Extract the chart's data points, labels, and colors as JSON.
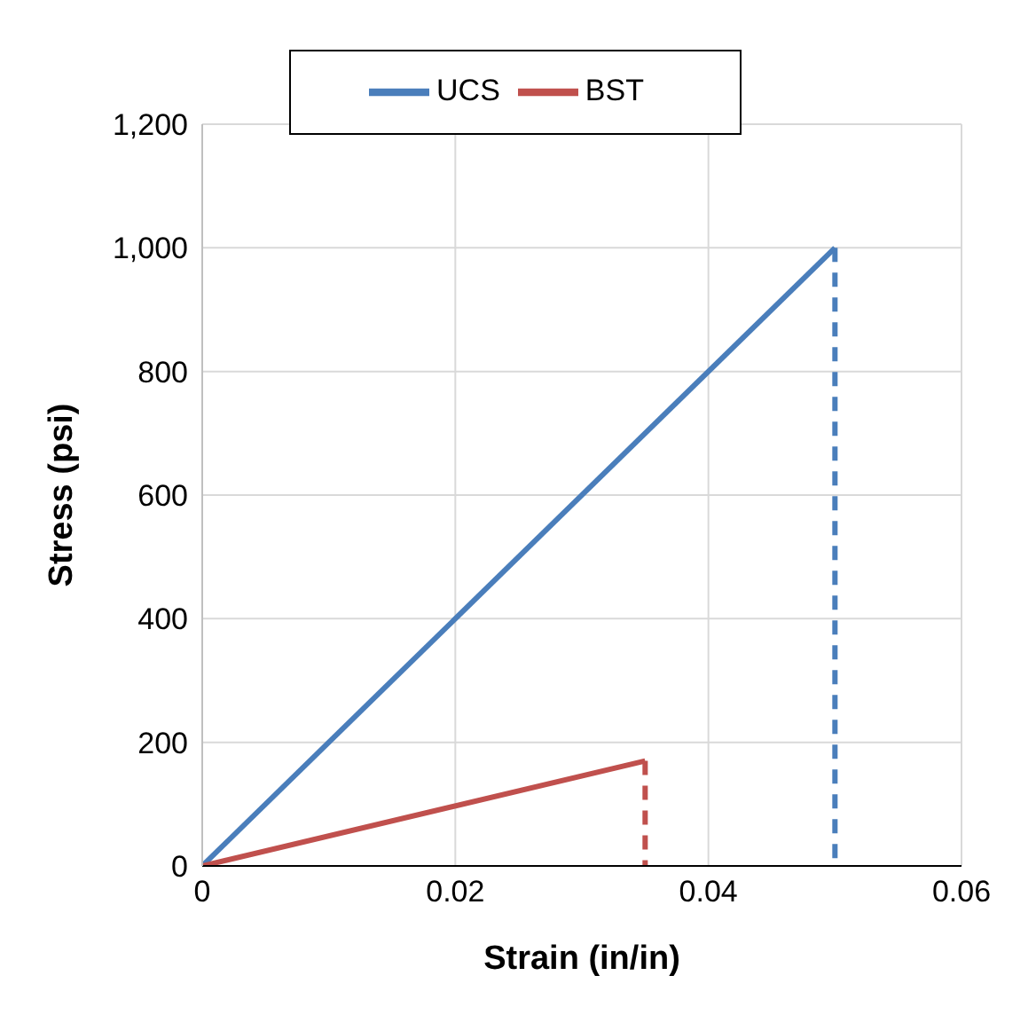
{
  "chart_data": {
    "type": "line",
    "xlabel": "Strain (in/in)",
    "ylabel": "Stress (psi)",
    "xlim": [
      0,
      0.06
    ],
    "xticks": [
      0,
      0.02,
      0.04,
      0.06
    ],
    "ylim": [
      0,
      1200
    ],
    "yticks": [
      0,
      200,
      400,
      600,
      800,
      {
        "value": 1000,
        "label": "1,000"
      },
      {
        "value": 1200,
        "label": "1,200"
      }
    ],
    "grid": true,
    "legend": "top",
    "marker": "none",
    "series": [
      {
        "name": "UCS",
        "color": "#4a7ebb",
        "x": [
          0,
          0.05
        ],
        "values": [
          0,
          1000
        ],
        "line_style": "solid"
      },
      {
        "name": "BST",
        "color": "#c0504d",
        "x": [
          0,
          0.035
        ],
        "values": [
          0,
          170
        ],
        "line_style": "solid"
      },
      {
        "color": "#4a7ebb",
        "x": [
          0.05,
          0.05
        ],
        "values": [
          1000,
          0
        ],
        "line_style": "dashed"
      },
      {
        "color": "#c0504d",
        "x": [
          0.035,
          0.035
        ],
        "values": [
          170,
          0
        ],
        "line_style": "dashed"
      }
    ]
  }
}
